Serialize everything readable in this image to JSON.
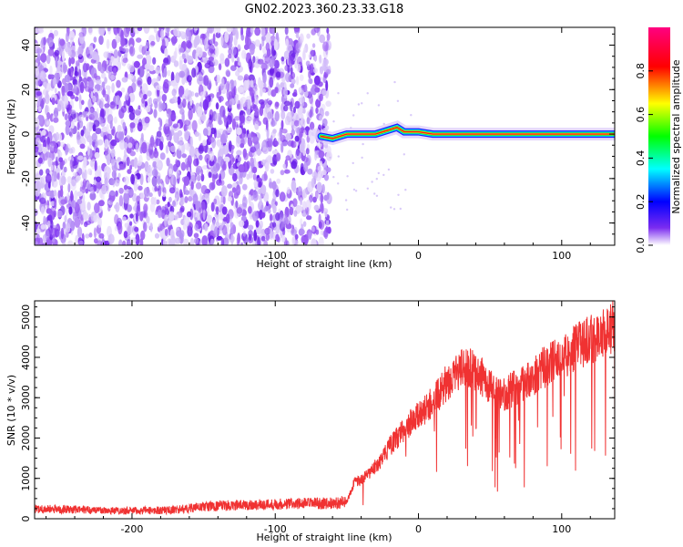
{
  "figure": {
    "title": "GN02.2023.360.23.33.G18"
  },
  "chart_data": [
    {
      "type": "heatmap",
      "title": "",
      "xlabel": "Height of straight line (km)",
      "ylabel": "Frequency (Hz)",
      "xlim": [
        -268,
        137
      ],
      "ylim": [
        -50,
        48
      ],
      "xticks": [
        -200,
        -100,
        0,
        100
      ],
      "xtick_labels": [
        "-200",
        "-100",
        "0",
        "100"
      ],
      "yticks": [
        -40,
        -20,
        0,
        20,
        40
      ],
      "ytick_labels": [
        "-40",
        "-20",
        "0",
        "20",
        "40"
      ],
      "noise_region_x": [
        -268,
        -62
      ],
      "signal_ridge": {
        "x": [
          -68,
          -60,
          -50,
          -40,
          -30,
          -20,
          -15,
          -10,
          0,
          10,
          20,
          40,
          60,
          80,
          100,
          120,
          137
        ],
        "frequency": [
          -1,
          -2,
          0,
          0,
          0,
          2,
          3,
          1,
          1,
          0,
          0,
          0,
          0,
          0,
          0,
          0,
          0
        ]
      },
      "colorbar": {
        "label": "Normalized spectral amplitude",
        "range": [
          0,
          1
        ],
        "ticks": [
          0.0,
          0.2,
          0.4,
          0.6,
          0.8
        ],
        "tick_labels": [
          "0.0",
          "0.2",
          "0.4",
          "0.6",
          "0.8"
        ],
        "colors": [
          "#ffffff",
          "#7b2cf0",
          "#0000ff",
          "#00ffff",
          "#00ff00",
          "#ffff00",
          "#ff0000",
          "#ff0080"
        ]
      },
      "grid": false
    },
    {
      "type": "line",
      "title": "",
      "xlabel": "Height of straight line (km)",
      "ylabel": "SNR (10 * v/v)",
      "xlim": [
        -268,
        137
      ],
      "ylim": [
        0,
        5400
      ],
      "xticks": [
        -200,
        -100,
        0,
        100
      ],
      "xtick_labels": [
        "-200",
        "-100",
        "0",
        "100"
      ],
      "yticks": [
        0,
        1000,
        2000,
        3000,
        4000,
        5000
      ],
      "ytick_labels": [
        "0",
        "1000",
        "2000",
        "3000",
        "4000",
        "5000"
      ],
      "series": [
        {
          "color": "#f03232",
          "x": [
            -268,
            -250,
            -230,
            -210,
            -190,
            -170,
            -150,
            -130,
            -110,
            -90,
            -75,
            -62,
            -50,
            -45,
            -40,
            -35,
            -30,
            -25,
            -20,
            -15,
            -10,
            -5,
            0,
            5,
            10,
            15,
            20,
            25,
            30,
            35,
            40,
            45,
            50,
            55,
            60,
            65,
            70,
            75,
            80,
            85,
            90,
            95,
            100,
            105,
            110,
            115,
            120,
            125,
            130,
            137
          ],
          "values": [
            250,
            230,
            220,
            200,
            200,
            220,
            300,
            330,
            350,
            370,
            380,
            380,
            420,
            900,
            950,
            1100,
            1300,
            1500,
            1800,
            2000,
            2200,
            2400,
            2550,
            2700,
            2900,
            3100,
            3400,
            3550,
            3700,
            3750,
            3600,
            3500,
            3250,
            3100,
            3100,
            3200,
            3300,
            3400,
            3500,
            3700,
            3800,
            3900,
            4000,
            4100,
            4250,
            4350,
            4450,
            4500,
            4600,
            4800
          ]
        }
      ],
      "grid": false
    }
  ]
}
